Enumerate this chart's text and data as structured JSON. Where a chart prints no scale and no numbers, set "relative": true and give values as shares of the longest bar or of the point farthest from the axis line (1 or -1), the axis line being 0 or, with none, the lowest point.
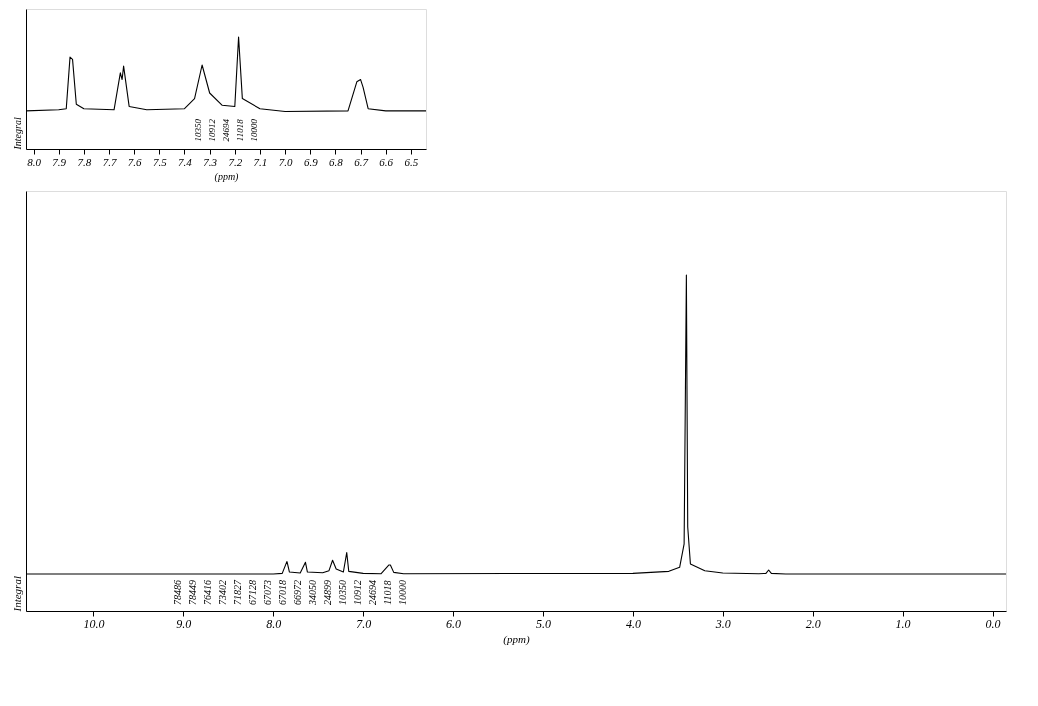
{
  "chart_data": [
    {
      "type": "line",
      "relative": true,
      "xlabel": "(ppm)",
      "ylabel": "Integral",
      "xlim": [
        8.03,
        6.44
      ],
      "xticks": [
        {
          "value": 8,
          "label": "8.0"
        },
        7.9,
        7.8,
        7.7,
        7.6,
        7.5,
        7.4,
        7.3,
        7.2,
        7.1,
        {
          "value": 7,
          "label": "7.0"
        },
        6.9,
        6.8,
        6.7,
        6.6,
        6.5
      ],
      "series": [
        {
          "color": "#000000",
          "x": [
            8.03,
            7.9,
            7.87,
            7.855,
            7.845,
            7.83,
            7.8,
            7.68,
            7.655,
            7.648,
            7.642,
            7.62,
            7.55,
            7.4,
            7.36,
            7.33,
            7.3,
            7.25,
            7.2,
            7.185,
            7.17,
            7.1,
            7.0,
            6.75,
            6.715,
            6.7,
            6.69,
            6.67,
            6.6,
            6.44
          ],
          "values": [
            0.34,
            0.35,
            0.36,
            0.82,
            0.8,
            0.4,
            0.36,
            0.35,
            0.68,
            0.62,
            0.74,
            0.38,
            0.35,
            0.36,
            0.45,
            0.75,
            0.5,
            0.39,
            0.38,
            1.0,
            0.45,
            0.36,
            0.335,
            0.34,
            0.6,
            0.62,
            0.55,
            0.36,
            0.34,
            0.34
          ]
        }
      ],
      "annotations": [
        "10350",
        "10912",
        "24694",
        "11018",
        "10000"
      ]
    },
    {
      "type": "line",
      "relative": true,
      "xlabel": "(ppm)",
      "ylabel": "Integral",
      "xlim": [
        10.75,
        -0.15
      ],
      "xticks": [
        {
          "value": 10,
          "label": "10.0"
        },
        {
          "value": 9,
          "label": "9.0"
        },
        {
          "value": 8,
          "label": "8.0"
        },
        {
          "value": 7,
          "label": "7.0"
        },
        {
          "value": 6,
          "label": "6.0"
        },
        {
          "value": 5,
          "label": "5.0"
        },
        {
          "value": 4,
          "label": "4.0"
        },
        {
          "value": 3,
          "label": "3.0"
        },
        {
          "value": 2,
          "label": "2.0"
        },
        {
          "value": 1,
          "label": "1.0"
        },
        {
          "value": 0,
          "label": "0.0"
        }
      ],
      "series": [
        {
          "color": "#000000",
          "x": [
            10.75,
            8.0,
            7.9,
            7.8486,
            7.8449,
            7.82,
            7.7,
            7.6416,
            7.62,
            7.45,
            7.38,
            7.3402,
            7.3,
            7.22,
            7.1827,
            7.16,
            7.0,
            6.8,
            6.7128,
            6.7073,
            6.7018,
            6.6972,
            6.66,
            6.55,
            4.0,
            3.6,
            3.48,
            3.43,
            3.405,
            3.39,
            3.36,
            3.2,
            3.0,
            2.6,
            2.52,
            2.4899,
            2.46,
            2.3,
            -0.15
          ],
          "values": [
            0.11,
            0.11,
            0.112,
            0.147,
            0.145,
            0.116,
            0.113,
            0.145,
            0.116,
            0.114,
            0.12,
            0.151,
            0.125,
            0.116,
            0.174,
            0.118,
            0.112,
            0.111,
            0.137,
            0.137,
            0.137,
            0.137,
            0.115,
            0.111,
            0.112,
            0.118,
            0.13,
            0.2,
            1.0,
            0.25,
            0.14,
            0.12,
            0.113,
            0.111,
            0.112,
            0.122,
            0.112,
            0.11,
            0.11
          ]
        }
      ],
      "annotations": [
        "78486",
        "78449",
        "76416",
        "73402",
        "71827",
        "67128",
        "67073",
        "67018",
        "66972",
        "34050",
        "24899",
        "10350",
        "10912",
        "24694",
        "11018",
        "10000"
      ]
    }
  ]
}
